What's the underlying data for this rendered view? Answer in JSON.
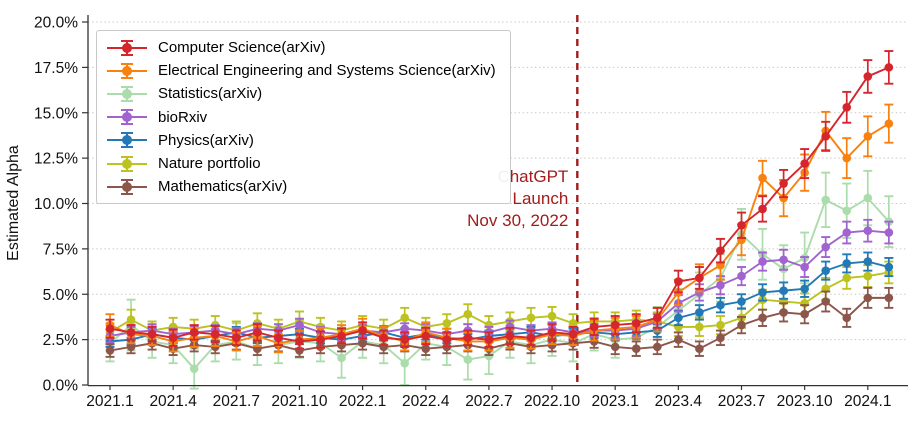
{
  "chart_data": {
    "type": "errorbar-line",
    "title": "",
    "xlabel": "",
    "ylabel": "Estimated Alpha",
    "ylim": [
      0,
      20
    ],
    "yticks": [
      0,
      2.5,
      5,
      7.5,
      10,
      12.5,
      15,
      17.5,
      20
    ],
    "ytick_format": "percent_one_decimal",
    "grid": "horizontal-dotted",
    "legend_position": "top-left",
    "x": [
      "2021.1",
      "2021.2",
      "2021.3",
      "2021.4",
      "2021.5",
      "2021.6",
      "2021.7",
      "2021.8",
      "2021.9",
      "2021.10",
      "2021.11",
      "2021.12",
      "2022.1",
      "2022.2",
      "2022.3",
      "2022.4",
      "2022.5",
      "2022.6",
      "2022.7",
      "2022.8",
      "2022.9",
      "2022.10",
      "2022.11",
      "2022.12",
      "2023.1",
      "2023.2",
      "2023.3",
      "2023.4",
      "2023.5",
      "2023.6",
      "2023.7",
      "2023.8",
      "2023.9",
      "2023.10",
      "2023.11",
      "2023.12",
      "2024.1",
      "2024.2"
    ],
    "xticks_shown": [
      "2021.1",
      "2021.4",
      "2021.7",
      "2021.10",
      "2022.1",
      "2022.4",
      "2022.7",
      "2022.10",
      "2023.1",
      "2023.4",
      "2023.7",
      "2023.10",
      "2024.1"
    ],
    "series": [
      {
        "name": "Computer Science(arXiv)",
        "color": "#d4262c",
        "values": [
          3.1,
          2.9,
          2.8,
          2.6,
          2.9,
          2.8,
          2.6,
          2.9,
          2.6,
          2.4,
          2.5,
          2.7,
          3.0,
          2.6,
          2.5,
          2.7,
          2.5,
          2.6,
          2.5,
          2.7,
          2.6,
          2.9,
          2.8,
          3.2,
          3.3,
          3.4,
          3.7,
          5.7,
          5.9,
          7.4,
          8.8,
          9.7,
          11.1,
          12.2,
          13.7,
          15.3,
          17.0,
          17.5
        ],
        "errors": [
          0.5,
          0.4,
          0.4,
          0.45,
          0.4,
          0.45,
          0.4,
          0.45,
          0.4,
          0.4,
          0.45,
          0.4,
          0.45,
          0.4,
          0.4,
          0.45,
          0.4,
          0.4,
          0.4,
          0.45,
          0.4,
          0.45,
          0.4,
          0.45,
          0.5,
          0.5,
          0.55,
          0.6,
          0.6,
          0.65,
          0.7,
          0.7,
          0.75,
          0.8,
          0.8,
          0.85,
          0.9,
          0.9
        ]
      },
      {
        "name": "Electrical Engineering and Systems Science(arXiv)",
        "color": "#f8810f",
        "values": [
          3.3,
          2.8,
          2.7,
          2.4,
          2.6,
          2.7,
          2.4,
          2.7,
          2.3,
          2.5,
          2.6,
          2.8,
          3.1,
          2.7,
          2.4,
          2.9,
          2.6,
          2.4,
          2.4,
          2.6,
          2.5,
          2.8,
          2.7,
          3.0,
          3.1,
          3.2,
          3.6,
          5.1,
          5.9,
          6.6,
          8.0,
          11.4,
          10.3,
          11.7,
          14.0,
          12.5,
          13.7,
          14.4
        ],
        "errors": [
          0.6,
          0.5,
          0.5,
          0.55,
          0.5,
          0.55,
          0.5,
          0.55,
          0.5,
          0.5,
          0.55,
          0.5,
          0.55,
          0.5,
          0.5,
          0.55,
          0.5,
          0.5,
          0.5,
          0.55,
          0.5,
          0.55,
          0.5,
          0.55,
          0.6,
          0.6,
          0.65,
          0.7,
          0.75,
          0.8,
          0.85,
          0.95,
          1.0,
          1.0,
          1.05,
          1.1,
          1.1,
          1.05
        ]
      },
      {
        "name": "Statistics(arXiv)",
        "color": "#abdcab",
        "values": [
          2.3,
          3.3,
          2.4,
          2.2,
          0.9,
          2.2,
          2.4,
          2.0,
          2.2,
          2.4,
          2.3,
          1.5,
          2.4,
          2.2,
          1.2,
          2.3,
          2.1,
          1.4,
          1.6,
          2.4,
          2.2,
          2.5,
          2.3,
          2.8,
          2.5,
          2.6,
          3.2,
          4.1,
          5.0,
          5.9,
          8.3,
          7.2,
          6.4,
          7.0,
          10.2,
          9.6,
          10.3,
          9.0
        ],
        "errors": [
          1.0,
          1.4,
          0.9,
          1.0,
          1.1,
          0.9,
          1.0,
          0.9,
          1.0,
          0.9,
          1.0,
          1.1,
          0.9,
          1.0,
          1.2,
          0.9,
          1.0,
          1.1,
          1.0,
          0.9,
          1.0,
          0.9,
          1.0,
          0.9,
          1.0,
          1.0,
          1.1,
          1.2,
          1.2,
          1.3,
          1.4,
          1.4,
          1.3,
          1.4,
          1.5,
          1.5,
          1.5,
          1.4
        ]
      },
      {
        "name": "bioRxiv",
        "color": "#a163cf",
        "values": [
          2.7,
          2.9,
          3.0,
          2.8,
          2.9,
          3.0,
          2.8,
          3.1,
          3.0,
          3.3,
          2.9,
          2.8,
          3.0,
          2.9,
          3.1,
          3.0,
          2.8,
          3.0,
          2.9,
          3.2,
          3.0,
          3.1,
          2.9,
          3.0,
          3.0,
          3.1,
          3.5,
          4.5,
          5.1,
          5.5,
          6.0,
          6.8,
          6.9,
          6.5,
          7.6,
          8.4,
          8.5,
          8.4
        ],
        "errors": [
          0.35,
          0.3,
          0.35,
          0.3,
          0.35,
          0.3,
          0.35,
          0.3,
          0.35,
          0.35,
          0.3,
          0.35,
          0.3,
          0.35,
          0.3,
          0.35,
          0.3,
          0.35,
          0.3,
          0.35,
          0.3,
          0.35,
          0.3,
          0.35,
          0.4,
          0.4,
          0.4,
          0.45,
          0.45,
          0.5,
          0.5,
          0.5,
          0.55,
          0.55,
          0.55,
          0.6,
          0.6,
          0.6
        ]
      },
      {
        "name": "Physics(arXiv)",
        "color": "#2279b5",
        "values": [
          2.4,
          2.5,
          2.8,
          2.6,
          2.5,
          2.7,
          2.9,
          2.6,
          2.7,
          2.8,
          2.6,
          2.5,
          2.7,
          2.9,
          2.6,
          2.8,
          2.6,
          2.5,
          2.7,
          2.8,
          2.9,
          2.7,
          2.8,
          2.9,
          2.8,
          2.9,
          3.0,
          3.7,
          4.0,
          4.4,
          4.6,
          5.1,
          5.2,
          5.3,
          6.3,
          6.7,
          6.8,
          6.5
        ],
        "errors": [
          0.3,
          0.3,
          0.3,
          0.3,
          0.3,
          0.3,
          0.3,
          0.3,
          0.3,
          0.3,
          0.3,
          0.3,
          0.3,
          0.3,
          0.3,
          0.3,
          0.3,
          0.3,
          0.3,
          0.3,
          0.3,
          0.3,
          0.3,
          0.3,
          0.35,
          0.35,
          0.35,
          0.4,
          0.4,
          0.4,
          0.4,
          0.45,
          0.45,
          0.45,
          0.5,
          0.5,
          0.5,
          0.5
        ]
      },
      {
        "name": "Nature portfolio",
        "color": "#bcc21e",
        "values": [
          2.9,
          3.6,
          3.0,
          3.2,
          3.1,
          3.3,
          3.0,
          3.4,
          3.1,
          3.5,
          3.2,
          3.0,
          3.3,
          3.1,
          3.7,
          3.2,
          3.4,
          3.9,
          3.3,
          3.5,
          3.7,
          3.8,
          3.4,
          3.5,
          3.5,
          3.6,
          3.5,
          3.2,
          3.2,
          3.3,
          3.7,
          4.7,
          4.6,
          4.5,
          5.3,
          5.9,
          6.0,
          6.2
        ],
        "errors": [
          0.5,
          0.55,
          0.5,
          0.5,
          0.5,
          0.5,
          0.5,
          0.55,
          0.5,
          0.55,
          0.5,
          0.5,
          0.5,
          0.5,
          0.55,
          0.5,
          0.5,
          0.55,
          0.5,
          0.5,
          0.55,
          0.5,
          0.5,
          0.5,
          0.5,
          0.5,
          0.5,
          0.5,
          0.5,
          0.5,
          0.55,
          0.55,
          0.55,
          0.55,
          0.6,
          0.6,
          0.6,
          0.6
        ]
      },
      {
        "name": "Mathematics(arXiv)",
        "color": "#8c564b",
        "values": [
          1.9,
          2.1,
          2.3,
          2.0,
          2.2,
          2.1,
          2.3,
          2.0,
          2.2,
          1.9,
          2.1,
          2.2,
          2.3,
          2.1,
          2.2,
          2.0,
          2.1,
          2.2,
          2.0,
          2.3,
          2.1,
          2.2,
          2.3,
          2.4,
          2.1,
          2.0,
          2.1,
          2.5,
          2.0,
          2.6,
          3.3,
          3.7,
          4.0,
          3.9,
          4.6,
          3.7,
          4.8,
          4.8
        ],
        "errors": [
          0.35,
          0.35,
          0.35,
          0.35,
          0.35,
          0.35,
          0.35,
          0.35,
          0.35,
          0.35,
          0.35,
          0.35,
          0.35,
          0.35,
          0.35,
          0.35,
          0.35,
          0.35,
          0.35,
          0.35,
          0.35,
          0.35,
          0.35,
          0.35,
          0.4,
          0.4,
          0.4,
          0.4,
          0.4,
          0.4,
          0.45,
          0.45,
          0.5,
          0.5,
          0.55,
          0.5,
          0.55,
          0.55
        ]
      }
    ],
    "draw_order": [
      2,
      5,
      4,
      6,
      3,
      1,
      0
    ],
    "vline": {
      "month_index": 22.2,
      "color": "#a31b1b",
      "style": "dashed"
    },
    "annotation": {
      "lines": [
        "ChatGPT",
        "Launch",
        "Nov 30, 2022"
      ],
      "color": "#a31b1b",
      "align": "right"
    }
  }
}
